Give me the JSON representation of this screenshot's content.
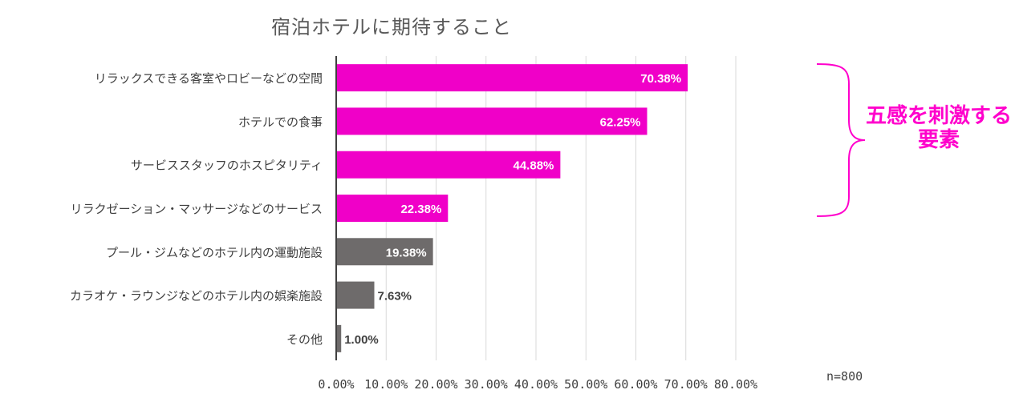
{
  "chart_data": {
    "type": "bar",
    "orientation": "horizontal",
    "title": "宿泊ホテルに期待すること",
    "categories": [
      "リラックスできる客室やロビーなどの空間",
      "ホテルでの食事",
      "サービススタッフのホスピタリティ",
      "リラクゼーション・マッサージなどのサービス",
      "プール・ジムなどのホテル内の運動施設",
      "カラオケ・ラウンジなどのホテル内の娯楽施設",
      "その他"
    ],
    "values": [
      70.38,
      62.25,
      44.88,
      22.38,
      19.38,
      7.63,
      1.0
    ],
    "data_labels": [
      "70.38%",
      "62.25%",
      "44.88%",
      "22.38%",
      "19.38%",
      "7.63%",
      "1.00%"
    ],
    "bar_colors": [
      "#f000c8",
      "#f000c8",
      "#f000c8",
      "#f000c8",
      "#6e6b6b",
      "#6e6b6b",
      "#6e6b6b"
    ],
    "xlim": [
      0,
      80
    ],
    "x_ticks": [
      "0.00%",
      "10.00%",
      "20.00%",
      "30.00%",
      "40.00%",
      "50.00%",
      "60.00%",
      "70.00%",
      "80.00%"
    ],
    "grid": true,
    "sample_size": "n=800",
    "annotation": {
      "text_line1": "五感を刺激する",
      "text_line2": "要素",
      "color": "#ff00cc"
    }
  }
}
